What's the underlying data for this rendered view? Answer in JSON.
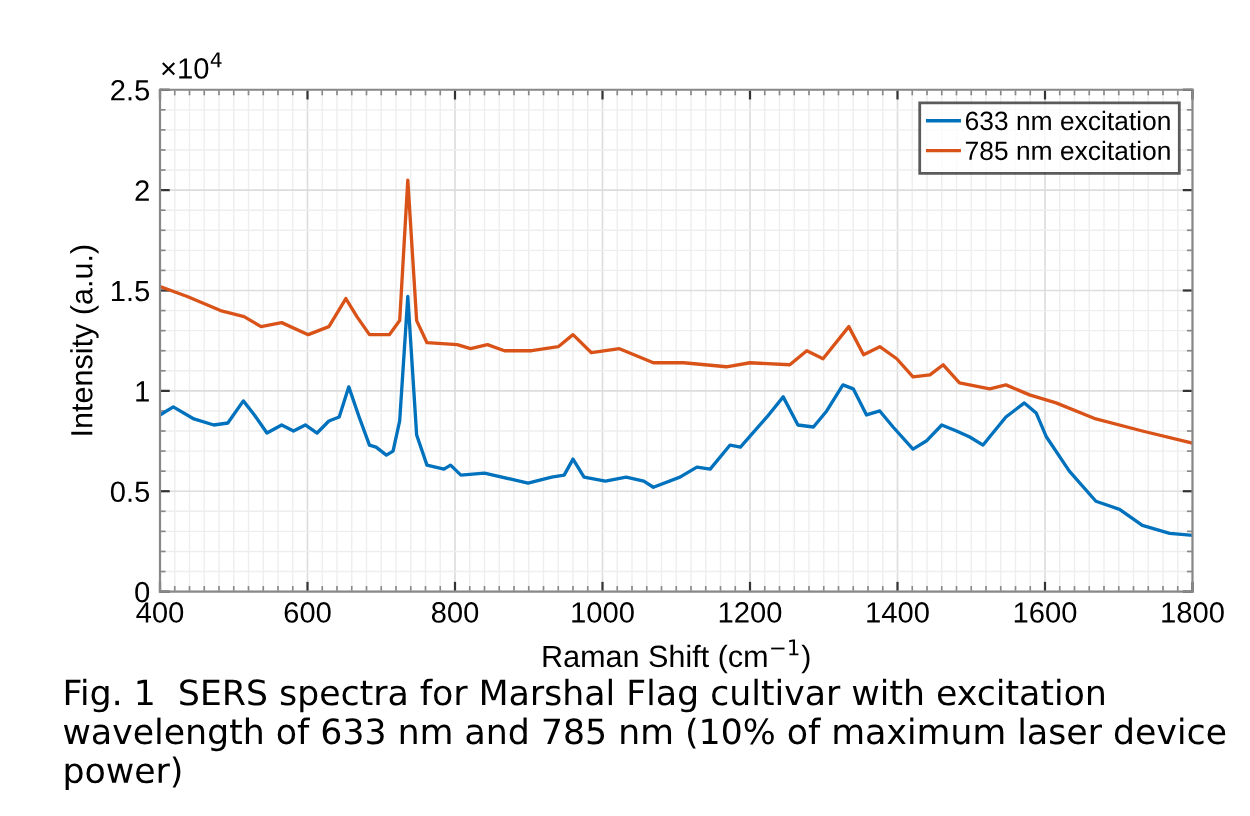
{
  "chart_data": {
    "type": "line",
    "xlabel": "Raman Shift (cm$^{−1}$)",
    "ylabel": "Intensity (a.u.)",
    "xlim": [
      400,
      1800
    ],
    "xticks": [
      400,
      600,
      800,
      1000,
      1200,
      1400,
      1600,
      1800
    ],
    "ylim": [
      0,
      2.5
    ],
    "yticks": [
      0,
      0.5,
      1,
      1.5,
      2,
      2.5
    ],
    "grid": true,
    "legend": "top right",
    "line_style": "solid",
    "marker": "none",
    "annotations": [
      "×10$^{4}$",
      "Fig. 1  SERS spectra for Marshal Flag cultivar with excitation wavelength of 633 nm and 785 nm (10% of maximum laser device power)"
    ],
    "series": [
      {
        "name": "633 nm excitation",
        "color": "#0072bd",
        "x": [
          400,
          418,
          446,
          473,
          492,
          513,
          528,
          545,
          565,
          581,
          597,
          613,
          629,
          643,
          656,
          670,
          684,
          693,
          707,
          716,
          725,
          736,
          748,
          762,
          785,
          794,
          808,
          840,
          876,
          899,
          931,
          948,
          960,
          975,
          1004,
          1032,
          1056,
          1069,
          1105,
          1128,
          1146,
          1173,
          1187,
          1223,
          1245,
          1265,
          1286,
          1304,
          1326,
          1340,
          1358,
          1376,
          1394,
          1421,
          1439,
          1460,
          1480,
          1498,
          1516,
          1547,
          1572,
          1588,
          1602,
          1633,
          1669,
          1701,
          1732,
          1769,
          1800
        ],
        "values": [
          0.88,
          0.92,
          0.86,
          0.83,
          0.84,
          0.95,
          0.88,
          0.79,
          0.83,
          0.8,
          0.83,
          0.79,
          0.85,
          0.87,
          1.02,
          0.87,
          0.73,
          0.72,
          0.68,
          0.7,
          0.85,
          1.47,
          0.78,
          0.63,
          0.61,
          0.63,
          0.58,
          0.59,
          0.56,
          0.54,
          0.57,
          0.58,
          0.66,
          0.57,
          0.55,
          0.57,
          0.55,
          0.52,
          0.57,
          0.62,
          0.61,
          0.73,
          0.72,
          0.87,
          0.97,
          0.83,
          0.82,
          0.9,
          1.03,
          1.01,
          0.88,
          0.9,
          0.82,
          0.71,
          0.75,
          0.83,
          0.8,
          0.77,
          0.73,
          0.87,
          0.94,
          0.89,
          0.77,
          0.6,
          0.45,
          0.41,
          0.33,
          0.29,
          0.28
        ]
      },
      {
        "name": "785 nm excitation",
        "color": "#d95319",
        "x": [
          400,
          437,
          482,
          514,
          537,
          565,
          601,
          629,
          652,
          667,
          684,
          711,
          725,
          736,
          748,
          762,
          803,
          821,
          844,
          867,
          904,
          940,
          960,
          985,
          1023,
          1069,
          1110,
          1168,
          1200,
          1254,
          1277,
          1299,
          1334,
          1354,
          1376,
          1399,
          1421,
          1444,
          1462,
          1484,
          1525,
          1547,
          1579,
          1615,
          1669,
          1732,
          1800
        ],
        "values": [
          1.52,
          1.47,
          1.4,
          1.37,
          1.32,
          1.34,
          1.28,
          1.32,
          1.46,
          1.37,
          1.28,
          1.28,
          1.35,
          2.05,
          1.35,
          1.24,
          1.23,
          1.21,
          1.23,
          1.2,
          1.2,
          1.22,
          1.28,
          1.19,
          1.21,
          1.14,
          1.14,
          1.12,
          1.14,
          1.13,
          1.2,
          1.16,
          1.32,
          1.18,
          1.22,
          1.16,
          1.07,
          1.08,
          1.13,
          1.04,
          1.01,
          1.03,
          0.98,
          0.94,
          0.86,
          0.8,
          0.74
        ]
      }
    ]
  }
}
